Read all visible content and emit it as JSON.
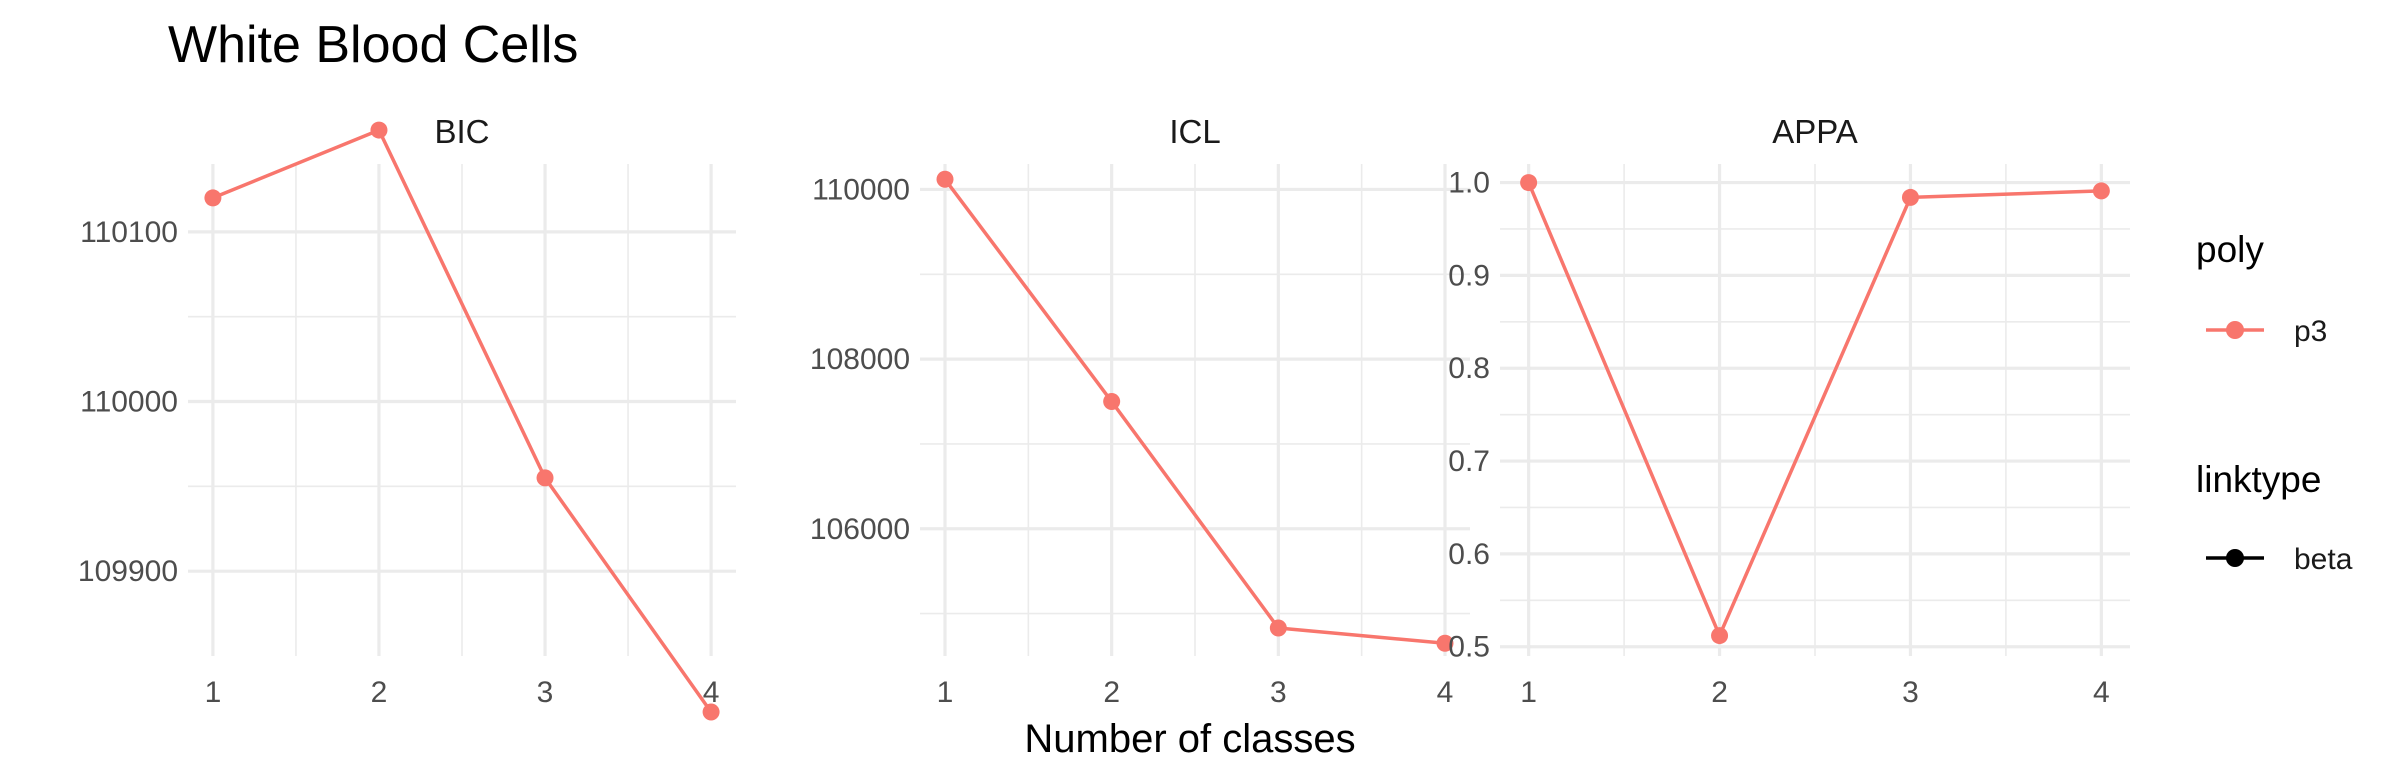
{
  "title": "White Blood Cells",
  "xlabel": "Number of classes",
  "legend": {
    "poly": {
      "title": "poly",
      "entries": [
        {
          "label": "p3",
          "color": "#F8766D"
        }
      ]
    },
    "linktype": {
      "title": "linktype",
      "entries": [
        {
          "label": "beta",
          "color": "#000000"
        }
      ]
    }
  },
  "chart_data": {
    "type": "line",
    "x": [
      1,
      2,
      3,
      4
    ],
    "xticks": [
      "1",
      "2",
      "3",
      "4"
    ],
    "xlabel": "Number of classes",
    "ylabel": "",
    "grid": true,
    "legend_position": "right",
    "series_color": "#F8766D",
    "panels": [
      {
        "name": "BIC",
        "ylim": [
          109850,
          110140
        ],
        "yticks": [
          109900,
          110000,
          110100
        ],
        "ytick_labels": [
          "109900",
          "110000",
          "110100"
        ],
        "series": [
          {
            "poly": "p3",
            "linktype": "beta",
            "values": [
              110120,
              110160,
              109955,
              109817
            ]
          }
        ]
      },
      {
        "name": "ICL",
        "ylim": [
          104500,
          110300
        ],
        "yticks": [
          106000,
          108000,
          110000
        ],
        "ytick_labels": [
          "106000",
          "108000",
          "110000"
        ],
        "series": [
          {
            "poly": "p3",
            "linktype": "beta",
            "values": [
              110120,
              107500,
              104830,
              104650
            ]
          }
        ]
      },
      {
        "name": "APPA",
        "ylim": [
          0.49,
          1.02
        ],
        "yticks": [
          0.5,
          0.6,
          0.7,
          0.8,
          0.9,
          1.0
        ],
        "ytick_labels": [
          "0.5",
          "0.6",
          "0.7",
          "0.8",
          "0.9",
          "1.0"
        ],
        "series": [
          {
            "poly": "p3",
            "linktype": "beta",
            "values": [
              1.0,
              0.512,
              0.984,
              0.991
            ]
          }
        ]
      }
    ]
  }
}
